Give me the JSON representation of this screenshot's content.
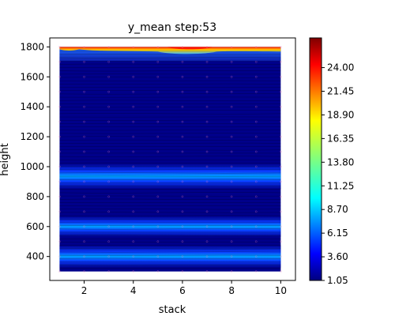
{
  "chart_data": {
    "type": "contourf",
    "title": "y_mean step:53",
    "xlabel": "stack",
    "ylabel": "height",
    "xlim": [
      0.6,
      10.6
    ],
    "ylim": [
      240,
      1860
    ],
    "data_xrange": [
      1,
      10
    ],
    "data_yrange": [
      300,
      1800
    ],
    "xticks": [
      2,
      4,
      6,
      8,
      10
    ],
    "yticks": [
      400,
      600,
      800,
      1000,
      1200,
      1400,
      1600,
      1800
    ],
    "colormap": "jet",
    "colorbar": {
      "range": [
        1.05,
        27.2
      ],
      "ticks": [
        "1.05",
        "3.60",
        "6.15",
        "8.70",
        "11.25",
        "13.80",
        "16.35",
        "18.90",
        "21.45",
        "24.00"
      ]
    },
    "bands": [
      {
        "label": "peak near height 400",
        "center": 400,
        "peak_value": 9.5
      },
      {
        "label": "peak near height 600",
        "center": 600,
        "peak_value": 9.0
      },
      {
        "label": "peak near height 935",
        "center": 935,
        "peak_value": 6.5
      },
      {
        "label": "hotspot at top edge, stack 5-8",
        "center": 1800,
        "peak_value": 27.0
      }
    ],
    "sample_points": {
      "x": [
        1,
        2,
        3,
        4,
        5,
        6,
        7,
        8,
        9,
        10
      ],
      "y": [
        300,
        400,
        500,
        600,
        700,
        800,
        900,
        1000,
        1100,
        1200,
        1300,
        1400,
        1500,
        1600,
        1700,
        1800
      ]
    },
    "grid": false,
    "legend": "colorbar right"
  },
  "colors": {
    "low": "#00008a",
    "band_mid": "#0a3cff",
    "band_core": "#00a0ff",
    "hot_core": "#ff1a00",
    "contour_line": "#000000",
    "sample_point": "#ff7fbf"
  }
}
